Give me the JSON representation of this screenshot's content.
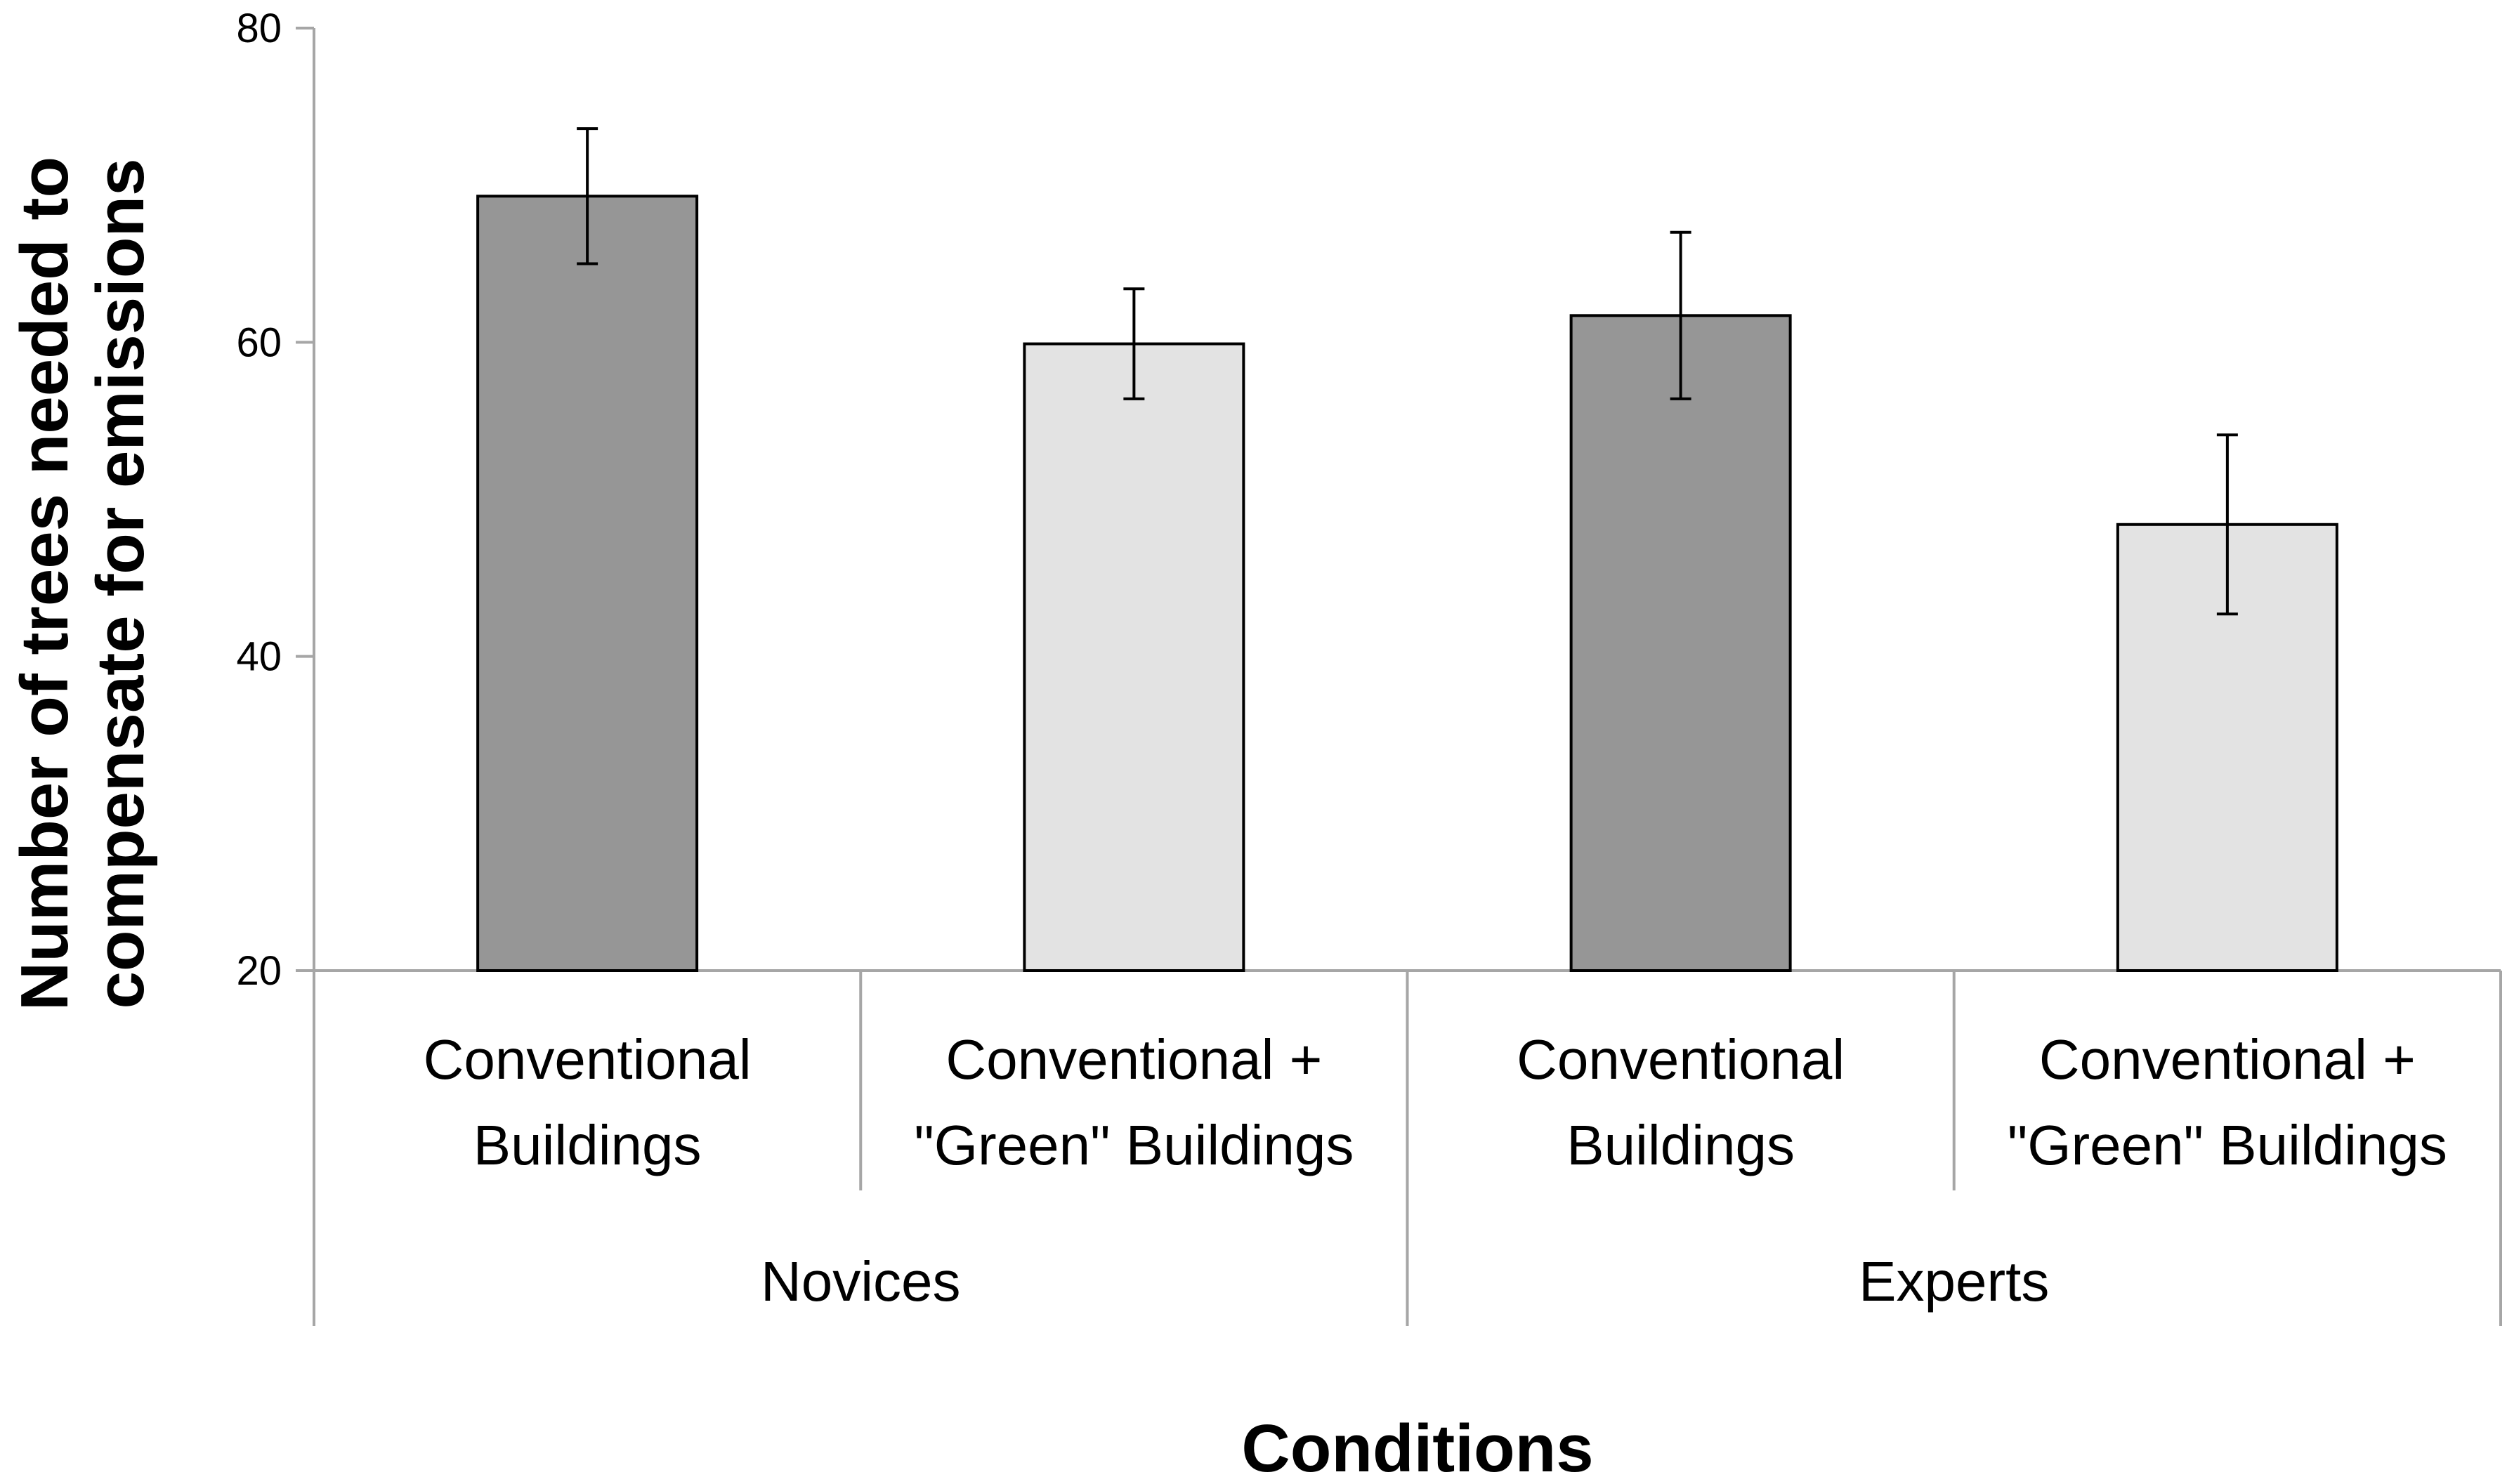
{
  "chart_data": {
    "type": "bar",
    "title": "",
    "xlabel": "Conditions",
    "ylabel": "Number of trees needed to compensate for emissions",
    "ylabel_lines": [
      "Number of trees needed to",
      "compensate for emissions"
    ],
    "ylim": [
      20,
      80
    ],
    "yticks": [
      20,
      40,
      60,
      80
    ],
    "grid": false,
    "legend": "none",
    "groups": [
      {
        "label": "Novices",
        "bars": [
          {
            "label_lines": [
              "Conventional",
              "Buildings"
            ],
            "value": 69.3,
            "error": 4.3,
            "color": "#969696"
          },
          {
            "label_lines": [
              "Conventional +",
              "\"Green\" Buildings"
            ],
            "value": 59.9,
            "error": 3.5,
            "color": "#e3e3e3"
          }
        ]
      },
      {
        "label": "Experts",
        "bars": [
          {
            "label_lines": [
              "Conventional",
              "Buildings"
            ],
            "value": 61.7,
            "error": 5.3,
            "color": "#969696"
          },
          {
            "label_lines": [
              "Conventional +",
              "\"Green\" Buildings"
            ],
            "value": 48.4,
            "error": 5.7,
            "color": "#e3e3e3"
          }
        ]
      }
    ]
  }
}
